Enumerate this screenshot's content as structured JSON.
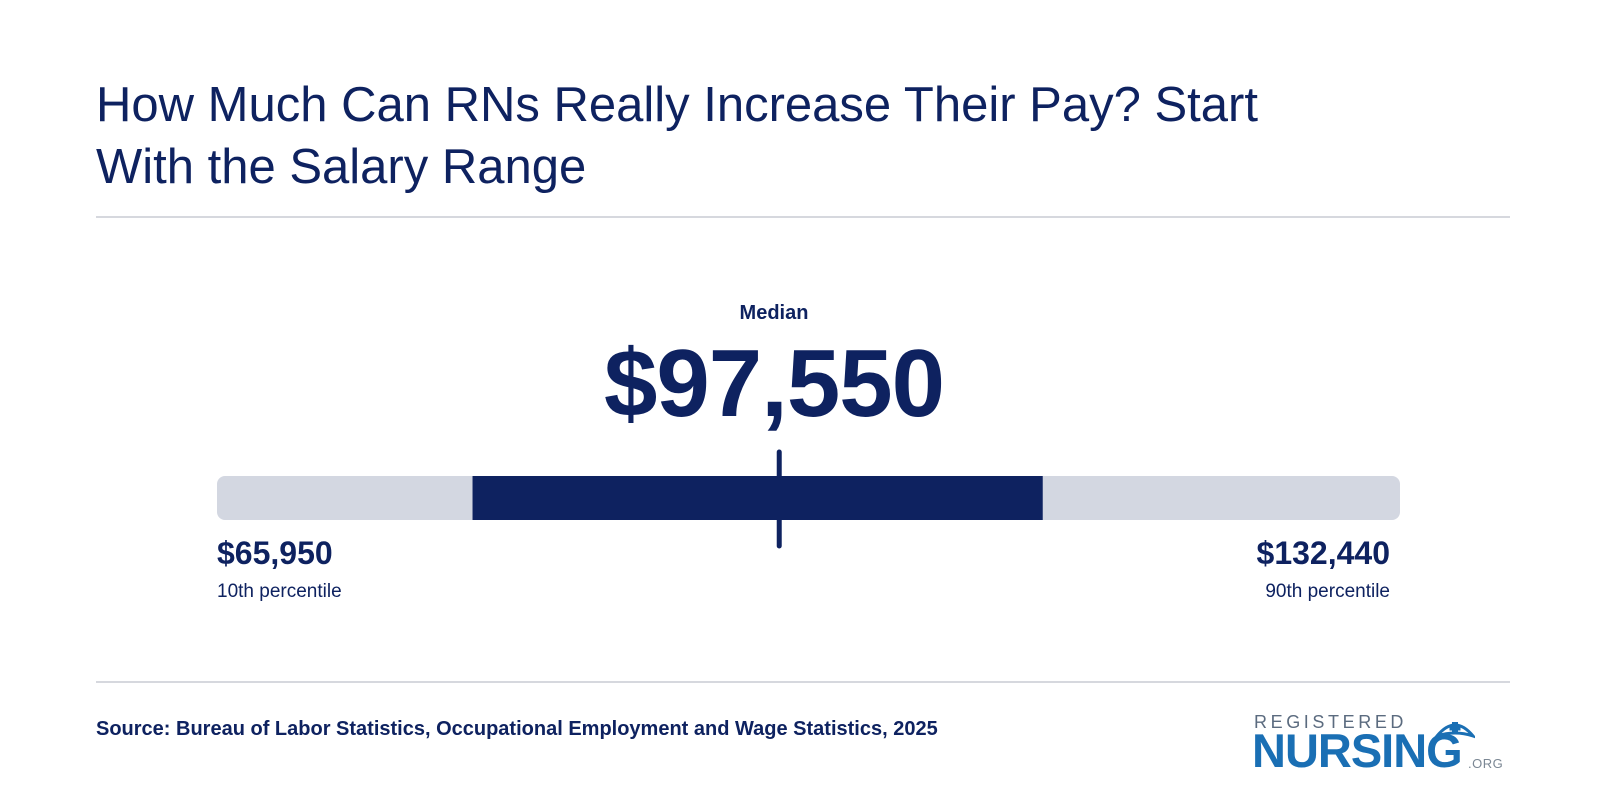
{
  "title": "How Much Can RNs Really Increase Their Pay? Start With the Salary Range",
  "chart_data": {
    "type": "range",
    "median_label": "Median",
    "median_value": 97550,
    "median_display": "$97,550",
    "min_value": 65950,
    "min_display": "$65,950",
    "min_label": "10th percentile",
    "max_value": 132440,
    "max_display": "$132,440",
    "max_label": "90th percentile",
    "highlight_range_fraction": [
      0.216,
      0.698
    ],
    "colors": {
      "track": "#d3d7e1",
      "highlight": "#0e2260",
      "marker": "#0e2260"
    }
  },
  "source": "Source: Bureau of Labor Statistics, Occupational Employment and Wage Statistics, 2025",
  "logo": {
    "top": "REGISTERED",
    "main": "NURSING",
    "tld": ".ORG"
  },
  "colors": {
    "text": "#0e2260",
    "rule": "#d6d8de",
    "logo_blue": "#1a6fb4",
    "logo_gray": "#5b6b7f"
  }
}
